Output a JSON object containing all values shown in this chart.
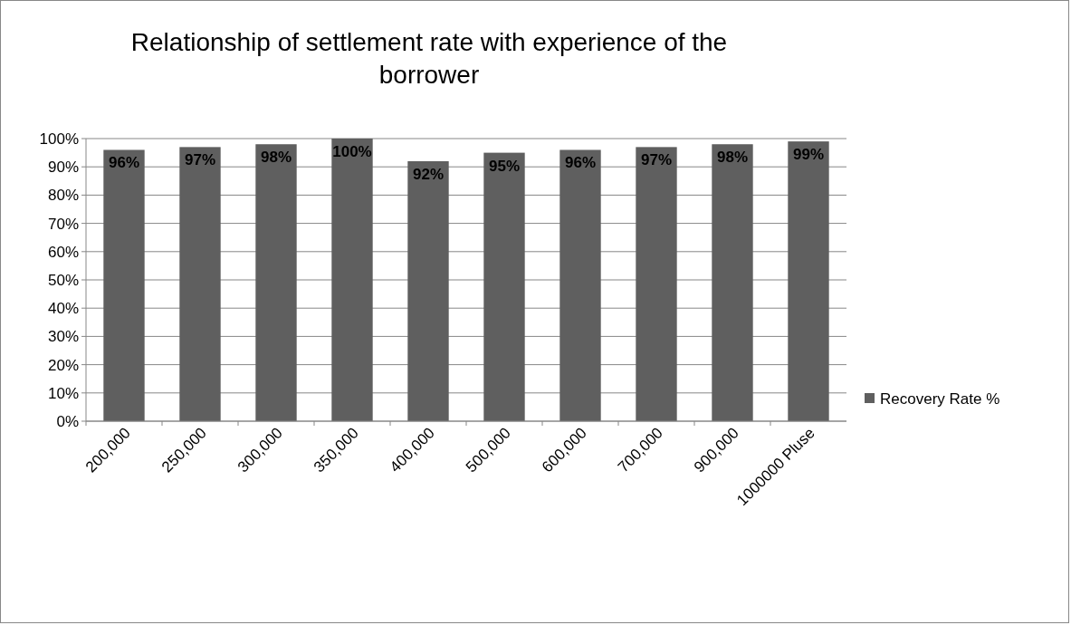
{
  "chart_data": {
    "type": "bar",
    "title": "Relationship of settlement rate with experience of the borrower",
    "categories": [
      "200,000",
      "250,000",
      "300,000",
      "350,000",
      "400,000",
      "500,000",
      "600,000",
      "700,000",
      "900,000",
      "1000000 Pluse"
    ],
    "series": [
      {
        "name": "Recovery Rate %",
        "color": "#5f5f5f",
        "values": [
          96,
          97,
          98,
          100,
          92,
          95,
          96,
          97,
          98,
          99
        ],
        "value_labels": [
          "96%",
          "97%",
          "98%",
          "100%",
          "92%",
          "95%",
          "96%",
          "97%",
          "98%",
          "99%"
        ]
      }
    ],
    "ylim": [
      0,
      100
    ],
    "yticks": [
      {
        "value": 0,
        "label": "0%"
      },
      {
        "value": 10,
        "label": "10%"
      },
      {
        "value": 20,
        "label": "20%"
      },
      {
        "value": 30,
        "label": "30%"
      },
      {
        "value": 40,
        "label": "40%"
      },
      {
        "value": 50,
        "label": "50%"
      },
      {
        "value": 60,
        "label": "60%"
      },
      {
        "value": 70,
        "label": "70%"
      },
      {
        "value": 80,
        "label": "80%"
      },
      {
        "value": 90,
        "label": "90%"
      },
      {
        "value": 100,
        "label": "100%"
      }
    ],
    "grid": "y",
    "legend": "right"
  }
}
